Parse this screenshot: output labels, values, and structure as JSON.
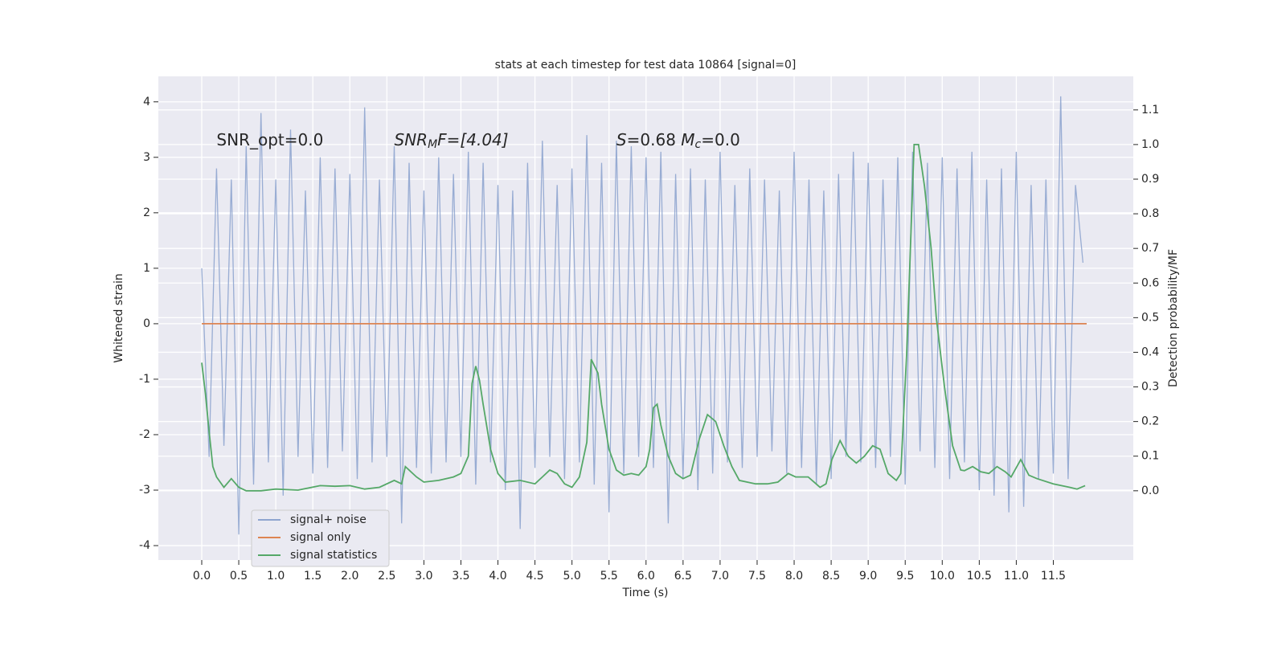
{
  "chart_data": {
    "type": "line",
    "title": "stats at each timestep for test data 10864 [signal=0]",
    "xlabel": "Time (s)",
    "ylabel": "Whitened strain",
    "y2label": "Detection probability/MF",
    "annotations": [
      {
        "parts": [
          "SNR_opt=0.0"
        ],
        "x": 0.2,
        "y": 3.3
      },
      {
        "parts": [
          "SNR",
          "M",
          "F=[4.04]"
        ],
        "x": 2.6,
        "y": 3.3
      },
      {
        "parts": [
          "S",
          "=0.68   ",
          "M",
          "c",
          "=0.0"
        ],
        "x": 5.6,
        "y": 3.3
      }
    ],
    "xlim": [
      -0.586,
      12.58
    ],
    "xticks": [
      {
        "value": 0,
        "label": "0.0"
      },
      0.5,
      {
        "value": 1,
        "label": "1.0"
      },
      1.5,
      {
        "value": 2,
        "label": "2.0"
      },
      2.5,
      {
        "value": 3,
        "label": "3.0"
      },
      3.5,
      {
        "value": 4,
        "label": "4.0"
      },
      4.5,
      {
        "value": 5,
        "label": "5.0"
      },
      5.5,
      {
        "value": 6,
        "label": "6.0"
      },
      6.5,
      {
        "value": 7,
        "label": "7.0"
      },
      7.5,
      {
        "value": 8,
        "label": "8.0"
      },
      8.5,
      {
        "value": 9,
        "label": "9.0"
      },
      9.5,
      {
        "value": 10,
        "label": "10.0"
      },
      10.5,
      {
        "value": 11,
        "label": "11.0"
      },
      11.5
    ],
    "ylim": [
      -4.26,
      4.46
    ],
    "yticks": [
      -4,
      -3,
      -2,
      -1,
      0,
      1,
      2,
      3,
      4
    ],
    "y2lim": [
      -0.2,
      1.197
    ],
    "y2ticks": [
      {
        "value": 0,
        "label": "0.0"
      },
      0.1,
      0.2,
      0.3,
      0.4,
      0.5,
      0.6,
      0.7,
      0.8,
      0.9,
      {
        "value": 1,
        "label": "1.0"
      },
      1.1
    ],
    "grid": true,
    "legend": "lower left",
    "series": [
      {
        "name": "signal+ noise",
        "color": "#8fa5cf",
        "x": [
          0,
          0.1,
          0.2,
          0.3,
          0.4,
          0.5,
          0.6,
          0.7,
          0.8,
          0.9,
          1,
          1.1,
          1.2,
          1.3,
          1.4,
          1.5,
          1.6,
          1.7,
          1.8,
          1.9,
          2,
          2.1,
          2.2,
          2.3,
          2.4,
          2.5,
          2.6,
          2.7,
          2.8,
          2.9,
          3,
          3.1,
          3.2,
          3.3,
          3.4,
          3.5,
          3.6,
          3.7,
          3.8,
          3.9,
          4,
          4.1,
          4.2,
          4.3,
          4.4,
          4.5,
          4.6,
          4.7,
          4.8,
          4.9,
          5,
          5.1,
          5.2,
          5.3,
          5.4,
          5.5,
          5.6,
          5.7,
          5.8,
          5.9,
          6,
          6.1,
          6.2,
          6.3,
          6.4,
          6.5,
          6.6,
          6.7,
          6.8,
          6.9,
          7,
          7.1,
          7.2,
          7.3,
          7.4,
          7.5,
          7.6,
          7.7,
          7.8,
          7.9,
          8,
          8.1,
          8.2,
          8.3,
          8.4,
          8.5,
          8.6,
          8.7,
          8.8,
          8.9,
          9,
          9.1,
          9.2,
          9.3,
          9.4,
          9.5,
          9.6,
          9.7,
          9.8,
          9.9,
          10,
          10.1,
          10.2,
          10.3,
          10.4,
          10.5,
          10.6,
          10.7,
          10.8,
          10.9,
          11,
          11.1,
          11.2,
          11.3,
          11.4,
          11.5,
          11.6,
          11.7,
          11.8,
          11.9
        ],
        "values": [
          1.0,
          -2.4,
          2.8,
          -2.2,
          2.6,
          -3.8,
          3.2,
          -2.9,
          3.8,
          -2.5,
          2.6,
          -3.1,
          3.5,
          -2.4,
          2.4,
          -2.7,
          3.0,
          -2.6,
          2.8,
          -2.3,
          2.7,
          -2.8,
          3.9,
          -2.5,
          2.6,
          -2.4,
          3.2,
          -3.6,
          2.9,
          -2.6,
          2.4,
          -2.7,
          3.0,
          -2.5,
          2.7,
          -2.4,
          3.1,
          -2.9,
          2.9,
          -2.5,
          2.5,
          -3.0,
          2.4,
          -3.7,
          2.9,
          -2.6,
          3.3,
          -2.4,
          2.5,
          -2.8,
          2.8,
          -2.5,
          3.4,
          -2.9,
          2.9,
          -3.4,
          3.3,
          -2.7,
          3.2,
          -2.4,
          3.0,
          -2.6,
          3.1,
          -3.6,
          2.7,
          -2.8,
          2.8,
          -3.0,
          2.6,
          -2.7,
          3.1,
          -2.5,
          2.5,
          -2.6,
          2.8,
          -2.4,
          2.6,
          -2.3,
          2.4,
          -2.7,
          3.1,
          -2.6,
          2.6,
          -2.9,
          2.4,
          -2.8,
          2.7,
          -2.4,
          3.1,
          -2.5,
          2.9,
          -2.6,
          2.6,
          -2.4,
          3.0,
          -2.9,
          3.1,
          -2.3,
          2.9,
          -2.6,
          3.0,
          -2.8,
          2.8,
          -2.5,
          3.1,
          -3.0,
          2.6,
          -3.1,
          2.8,
          -3.4,
          3.1,
          -3.3,
          2.5,
          -2.8,
          2.6,
          -2.7,
          4.1,
          -2.8,
          2.5,
          1.1
        ]
      },
      {
        "name": "signal only",
        "color": "#dd8452",
        "x": [
          0,
          11.95
        ],
        "values": [
          0,
          0
        ]
      },
      {
        "name": "signal statistics",
        "color": "#55a868",
        "axis": "y2",
        "x": [
          0,
          0.05,
          0.1,
          0.15,
          0.2,
          0.3,
          0.4,
          0.5,
          0.6,
          0.8,
          1.0,
          1.3,
          1.6,
          1.8,
          2.0,
          2.2,
          2.4,
          2.6,
          2.7,
          2.75,
          2.9,
          3.0,
          3.2,
          3.4,
          3.5,
          3.6,
          3.65,
          3.7,
          3.75,
          3.8,
          3.9,
          4.0,
          4.1,
          4.3,
          4.5,
          4.6,
          4.7,
          4.8,
          4.9,
          5.0,
          5.1,
          5.2,
          5.26,
          5.35,
          5.4,
          5.5,
          5.6,
          5.7,
          5.8,
          5.9,
          6.0,
          6.05,
          6.1,
          6.15,
          6.2,
          6.3,
          6.4,
          6.5,
          6.6,
          6.72,
          6.83,
          6.94,
          7.05,
          7.16,
          7.26,
          7.48,
          7.64,
          7.78,
          7.92,
          8.02,
          8.19,
          8.35,
          8.43,
          8.51,
          8.62,
          8.73,
          8.84,
          8.95,
          9.06,
          9.16,
          9.27,
          9.38,
          9.44,
          9.52,
          9.62,
          9.68,
          9.76,
          9.85,
          9.92,
          10.03,
          10.14,
          10.25,
          10.3,
          10.41,
          10.52,
          10.63,
          10.74,
          10.85,
          10.93,
          11.06,
          11.17,
          11.28,
          11.5,
          11.72,
          11.82,
          11.93
        ],
        "values": [
          0.37,
          0.28,
          0.17,
          0.07,
          0.04,
          0.01,
          0.035,
          0.01,
          0.0,
          0.0,
          0.005,
          0.002,
          0.015,
          0.013,
          0.015,
          0.005,
          0.01,
          0.03,
          0.02,
          0.07,
          0.04,
          0.025,
          0.03,
          0.04,
          0.05,
          0.1,
          0.31,
          0.36,
          0.32,
          0.25,
          0.12,
          0.05,
          0.025,
          0.03,
          0.02,
          0.04,
          0.06,
          0.05,
          0.02,
          0.01,
          0.04,
          0.14,
          0.38,
          0.34,
          0.25,
          0.12,
          0.06,
          0.045,
          0.05,
          0.045,
          0.07,
          0.12,
          0.24,
          0.25,
          0.19,
          0.1,
          0.05,
          0.035,
          0.045,
          0.15,
          0.22,
          0.2,
          0.13,
          0.07,
          0.03,
          0.02,
          0.02,
          0.025,
          0.05,
          0.04,
          0.04,
          0.01,
          0.02,
          0.09,
          0.145,
          0.1,
          0.08,
          0.1,
          0.13,
          0.12,
          0.05,
          0.03,
          0.05,
          0.4,
          1.0,
          1.0,
          0.88,
          0.7,
          0.5,
          0.3,
          0.13,
          0.06,
          0.058,
          0.07,
          0.055,
          0.05,
          0.07,
          0.055,
          0.04,
          0.09,
          0.045,
          0.035,
          0.02,
          0.01,
          0.005,
          0.015
        ]
      }
    ]
  }
}
